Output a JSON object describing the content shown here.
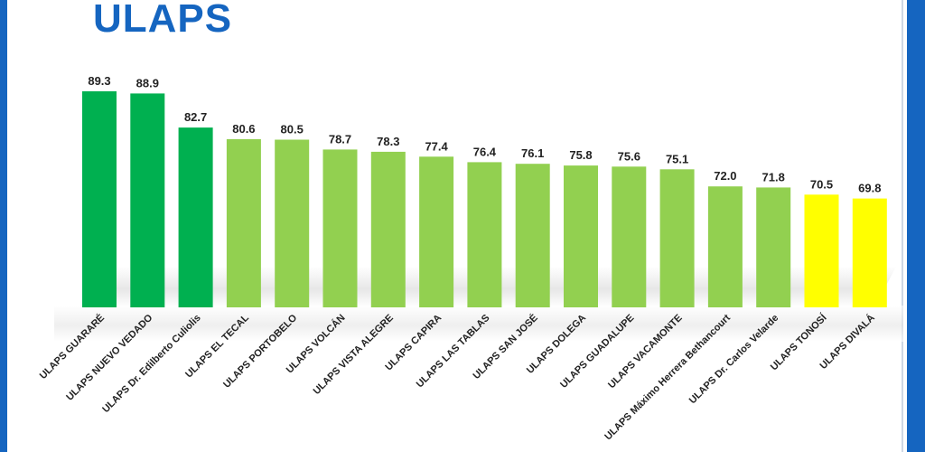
{
  "header": {
    "title": "ULAPS"
  },
  "colors": {
    "accent": "#1565c0",
    "dark_green": "#00b050",
    "light_green": "#92d050",
    "yellow": "#ffff00"
  },
  "chart_data": {
    "type": "bar",
    "title": "ULAPS",
    "xlabel": "",
    "ylabel": "",
    "ylim": [
      50,
      90
    ],
    "grid": false,
    "legend": "none",
    "categories": [
      "ULAPS GUARARÉ",
      "ULAPS NUEVO VEDADO",
      "ULAPS Dr. Edilberto Culiolis",
      "ULAPS EL TECAL",
      "ULAPS PORTOBELO",
      "ULAPS VOLCÁN",
      "ULAPS VISTA ALEGRE",
      "ULAPS CAPIRA",
      "ULAPS LAS TABLAS",
      "ULAPS SAN JOSÉ",
      "ULAPS DOLEGA",
      "ULAPS GUADALUPE",
      "ULAPS VACAMONTE",
      "ULAPS Máximo Herrera Bethancourt",
      "ULAPS Dr. Carlos Velarde",
      "ULAPS TONOSÍ",
      "ULAPS DIVALÁ"
    ],
    "values": [
      89.3,
      88.9,
      82.7,
      80.6,
      80.5,
      78.7,
      78.3,
      77.4,
      76.4,
      76.1,
      75.8,
      75.6,
      75.1,
      72.0,
      71.8,
      70.5,
      69.8
    ],
    "value_labels": [
      "89.3",
      "88.9",
      "82.7",
      "80.6",
      "80.5",
      "78.7",
      "78.3",
      "77.4",
      "76.4",
      "76.1",
      "75.8",
      "75.6",
      "75.1",
      "72.0",
      "71.8",
      "70.5",
      "69.8"
    ],
    "bar_colors": [
      "#00b050",
      "#00b050",
      "#00b050",
      "#92d050",
      "#92d050",
      "#92d050",
      "#92d050",
      "#92d050",
      "#92d050",
      "#92d050",
      "#92d050",
      "#92d050",
      "#92d050",
      "#92d050",
      "#92d050",
      "#ffff00",
      "#ffff00"
    ]
  }
}
